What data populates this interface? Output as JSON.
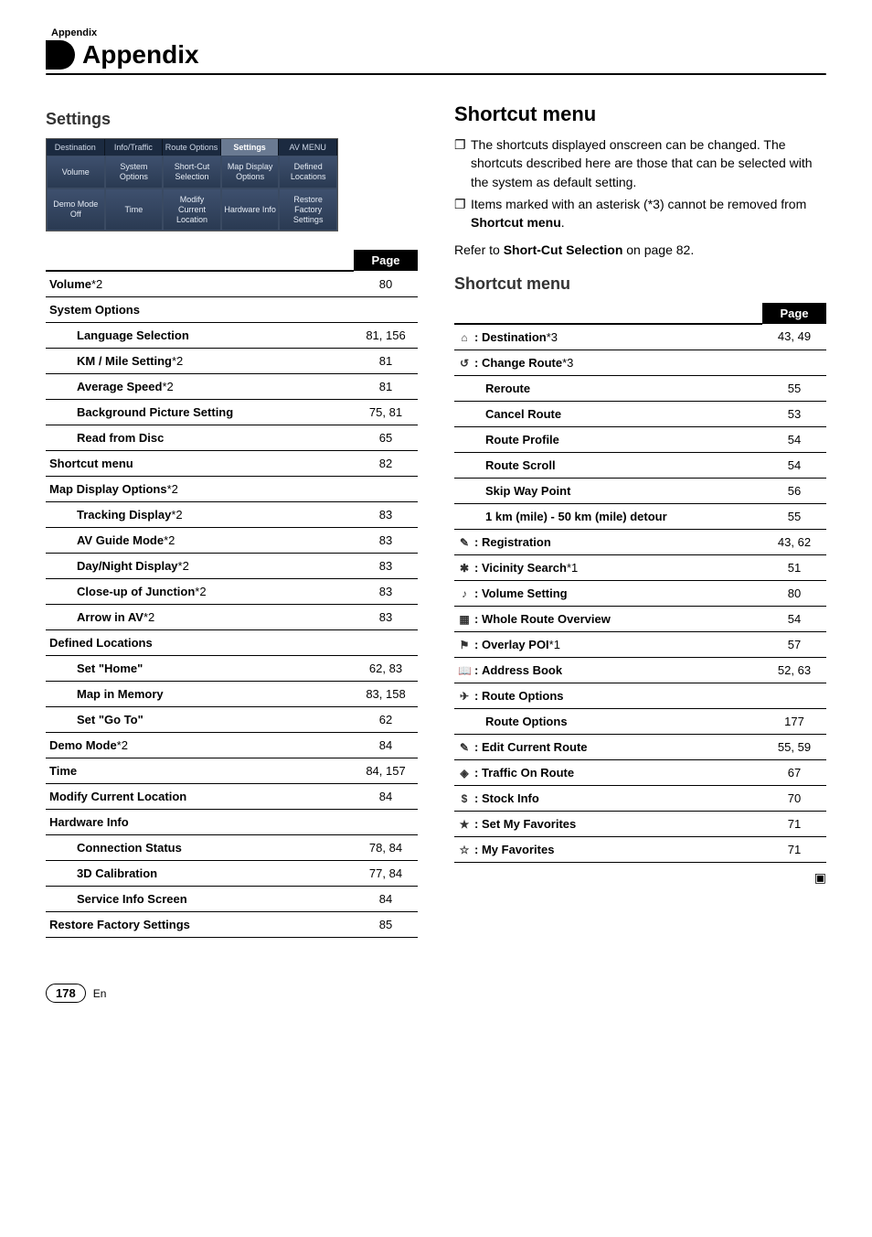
{
  "header": {
    "section": "Appendix",
    "title": "Appendix"
  },
  "left": {
    "heading": "Settings",
    "mock": {
      "tabs": [
        "Destination",
        "Info/Traffic",
        "Route Options",
        "Settings",
        "AV MENU"
      ],
      "activeTab": 3,
      "cellsRow1": [
        "Volume",
        "System Options",
        "Short-Cut Selection",
        "Map Display Options",
        "Defined Locations"
      ],
      "cellsRow2": [
        "Demo Mode Off",
        "Time",
        "Modify Current Location",
        "Hardware Info",
        "Restore Factory Settings"
      ]
    },
    "pageHead": "Page",
    "rows": [
      {
        "label": "Volume",
        "suffix": "*2",
        "page": "80",
        "indent": 0
      },
      {
        "label": "System Options",
        "page": "",
        "indent": 0
      },
      {
        "label": "Language Selection",
        "page": "81, 156",
        "indent": 1
      },
      {
        "label": "KM / Mile Setting",
        "suffix": "*2",
        "page": "81",
        "indent": 1
      },
      {
        "label": "Average Speed",
        "suffix": "*2",
        "page": "81",
        "indent": 1
      },
      {
        "label": "Background Picture Setting",
        "page": "75, 81",
        "indent": 1
      },
      {
        "label": "Read from Disc",
        "page": "65",
        "indent": 1
      },
      {
        "label": "Shortcut menu",
        "page": "82",
        "indent": 0
      },
      {
        "label": "Map Display Options",
        "suffix": "*2",
        "page": "",
        "indent": 0
      },
      {
        "label": "Tracking Display",
        "suffix": "*2",
        "page": "83",
        "indent": 1
      },
      {
        "label": "AV Guide Mode",
        "suffix": "*2",
        "page": "83",
        "indent": 1
      },
      {
        "label": "Day/Night Display",
        "suffix": "*2",
        "page": "83",
        "indent": 1
      },
      {
        "label": "Close-up of Junction",
        "suffix": "*2",
        "page": "83",
        "indent": 1
      },
      {
        "label": "Arrow in AV",
        "suffix": "*2",
        "page": "83",
        "indent": 1
      },
      {
        "label": "Defined Locations",
        "page": "",
        "indent": 0
      },
      {
        "label": "Set \"Home\"",
        "page": "62, 83",
        "indent": 1
      },
      {
        "label": "Map in Memory",
        "page": "83, 158",
        "indent": 1
      },
      {
        "label": "Set \"Go To\"",
        "page": "62",
        "indent": 1
      },
      {
        "label": "Demo Mode",
        "suffix": "*2",
        "page": "84",
        "indent": 0
      },
      {
        "label": "Time",
        "page": "84, 157",
        "indent": 0
      },
      {
        "label": "Modify Current Location",
        "page": "84",
        "indent": 0
      },
      {
        "label": "Hardware Info",
        "page": "",
        "indent": 0
      },
      {
        "label": "Connection Status",
        "page": "78, 84",
        "indent": 1
      },
      {
        "label": "3D Calibration",
        "page": "77, 84",
        "indent": 1
      },
      {
        "label": "Service Info Screen",
        "page": "84",
        "indent": 1
      },
      {
        "label": "Restore Factory Settings",
        "page": "85",
        "indent": 0
      }
    ]
  },
  "right": {
    "heading": "Shortcut menu",
    "bullets": [
      "The shortcuts displayed onscreen can be changed. The shortcuts described here are those that can be selected with the system as default setting.",
      "Items marked with an asterisk (*3) cannot be removed from "
    ],
    "bullet2_bold": "Shortcut menu",
    "refer_pre": "Refer to ",
    "refer_bold": "Short-Cut Selection",
    "refer_post": " on page 82.",
    "subheading": "Shortcut menu",
    "pageHead": "Page",
    "rows": [
      {
        "icon": "⌂",
        "label": "Destination",
        "suffix": "*3",
        "page": "43, 49",
        "indent": 0
      },
      {
        "icon": "↺",
        "label": "Change Route",
        "suffix": "*3",
        "page": "",
        "indent": 0
      },
      {
        "label": "Reroute",
        "page": "55",
        "indent": 1
      },
      {
        "label": "Cancel Route",
        "page": "53",
        "indent": 1
      },
      {
        "label": "Route Profile",
        "page": "54",
        "indent": 1
      },
      {
        "label": "Route Scroll",
        "page": "54",
        "indent": 1
      },
      {
        "label": "Skip Way Point",
        "page": "56",
        "indent": 1
      },
      {
        "label": "1 km (mile) - 50 km (mile) detour",
        "page": "55",
        "indent": 1
      },
      {
        "icon": "✎",
        "label": "Registration",
        "page": "43, 62",
        "indent": 0
      },
      {
        "icon": "✱",
        "label": "Vicinity Search",
        "suffix": "*1",
        "page": "51",
        "indent": 0
      },
      {
        "icon": "♪",
        "label": "Volume Setting",
        "page": "80",
        "indent": 0
      },
      {
        "icon": "▦",
        "label": "Whole Route Overview",
        "page": "54",
        "indent": 0
      },
      {
        "icon": "⚑",
        "label": "Overlay POI",
        "suffix": "*1",
        "page": "57",
        "indent": 0
      },
      {
        "icon": "📖",
        "label": "Address Book",
        "page": "52, 63",
        "indent": 0
      },
      {
        "icon": "✈",
        "label": "Route Options",
        "page": "",
        "indent": 0
      },
      {
        "label": "Route Options",
        "page": "177",
        "indent": 1
      },
      {
        "icon": "✎",
        "label": "Edit Current Route",
        "page": "55, 59",
        "indent": 0
      },
      {
        "icon": "◈",
        "label": "Traffic On Route",
        "page": "67",
        "indent": 0
      },
      {
        "icon": "$",
        "label": "Stock Info",
        "page": "70",
        "indent": 0
      },
      {
        "icon": "★",
        "label": "Set My Favorites",
        "page": "71",
        "indent": 0
      },
      {
        "icon": "☆",
        "label": "My Favorites",
        "page": "71",
        "indent": 0
      }
    ],
    "endMark": "▣"
  },
  "footer": {
    "pageNum": "178",
    "lang": "En"
  }
}
